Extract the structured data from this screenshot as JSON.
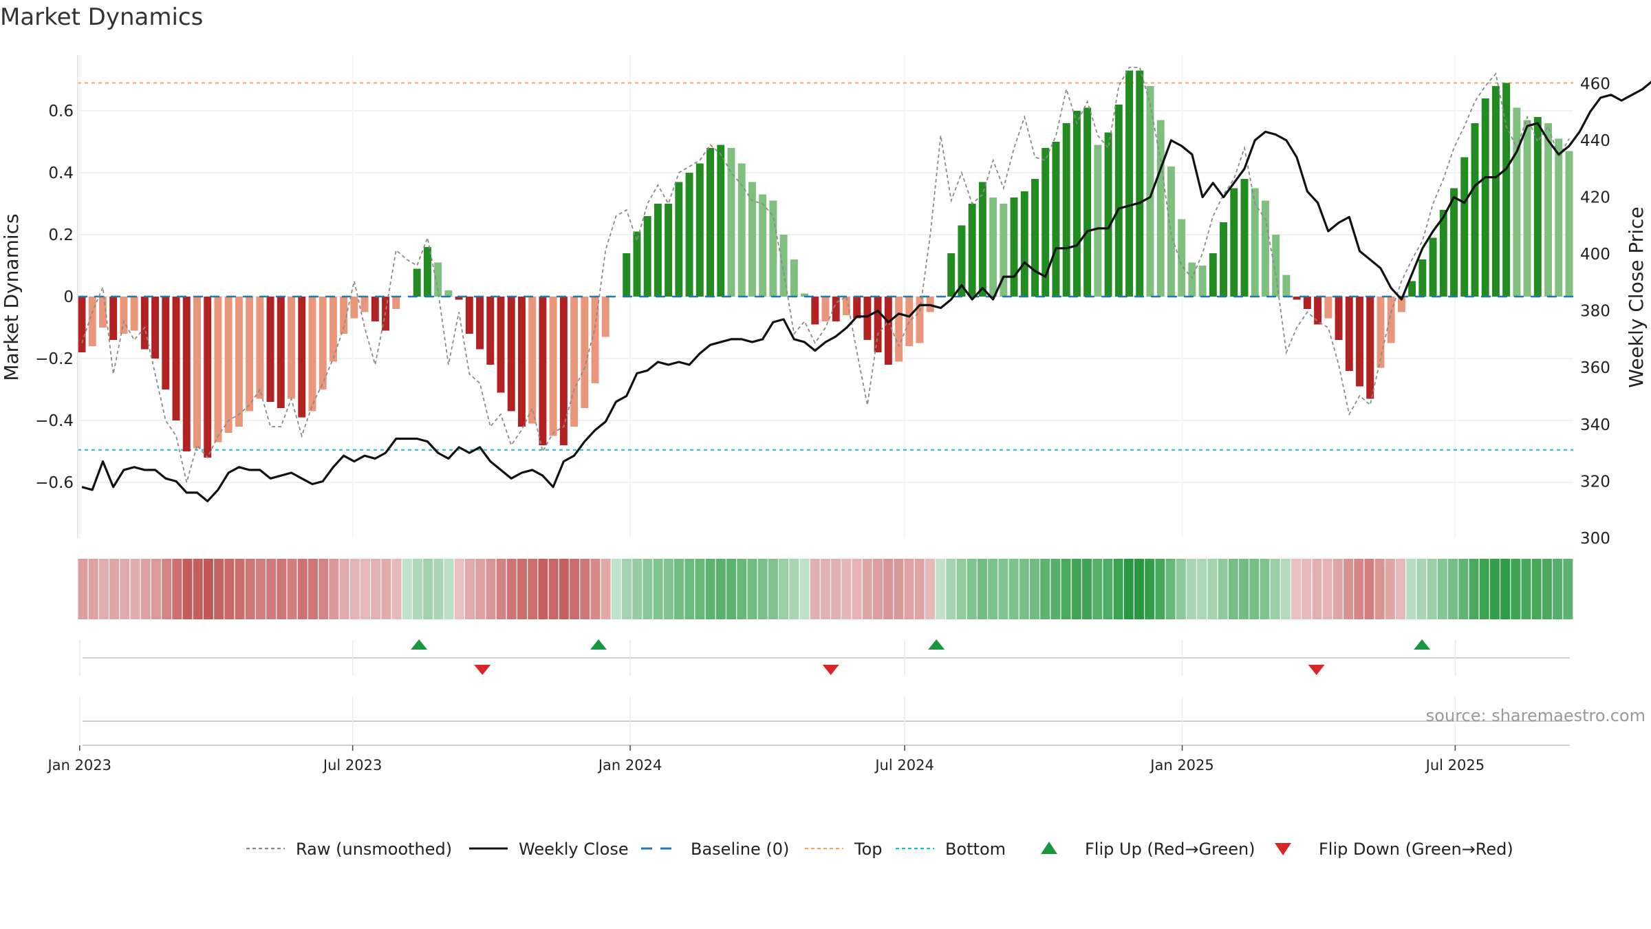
{
  "chart_data": {
    "type": "bar",
    "title": "Market Dynamics",
    "watermark": "source: sharemaestro.com",
    "left_axis": {
      "label": "Market Dynamics",
      "ylim": [
        -0.78,
        0.78
      ],
      "ticks": [
        -0.6,
        -0.4,
        -0.2,
        0,
        0.2,
        0.4,
        0.6
      ],
      "tick_labels": [
        "−0.6",
        "−0.4",
        "−0.2",
        "0",
        "0.2",
        "0.4",
        "0.6"
      ]
    },
    "right_axis": {
      "label": "Weekly Close Price",
      "ylim": [
        300,
        470
      ],
      "ticks": [
        300,
        320,
        340,
        360,
        380,
        400,
        420,
        440,
        460
      ]
    },
    "x_axis": {
      "start": "2023-01-02",
      "end": "2025-09-15",
      "ticks": [
        {
          "date": "2023-01-01",
          "label": "Jan 2023"
        },
        {
          "date": "2023-07-01",
          "label": "Jul 2023"
        },
        {
          "date": "2024-01-01",
          "label": "Jan 2024"
        },
        {
          "date": "2024-07-01",
          "label": "Jul 2024"
        },
        {
          "date": "2025-01-01",
          "label": "Jan 2025"
        },
        {
          "date": "2025-07-01",
          "label": "Jul 2025"
        }
      ]
    },
    "thresholds": {
      "top": 0.69,
      "bottom": -0.495,
      "baseline": 0
    },
    "bars": [
      -0.18,
      -0.16,
      -0.1,
      -0.14,
      -0.12,
      -0.11,
      -0.17,
      -0.2,
      -0.3,
      -0.4,
      -0.5,
      -0.49,
      -0.52,
      -0.47,
      -0.44,
      -0.42,
      -0.37,
      -0.33,
      -0.34,
      -0.36,
      -0.33,
      -0.39,
      -0.37,
      -0.3,
      -0.21,
      -0.12,
      -0.07,
      -0.05,
      -0.08,
      -0.11,
      -0.04,
      0,
      0.09,
      0.16,
      0.11,
      0.02,
      -0.01,
      -0.12,
      -0.17,
      -0.22,
      -0.31,
      -0.37,
      -0.42,
      -0.41,
      -0.48,
      -0.45,
      -0.48,
      -0.42,
      -0.36,
      -0.28,
      -0.13,
      0,
      0.14,
      0.21,
      0.26,
      0.3,
      0.3,
      0.37,
      0.4,
      0.43,
      0.48,
      0.49,
      0.48,
      0.43,
      0.37,
      0.33,
      0.31,
      0.2,
      0.12,
      0.01,
      -0.09,
      -0.08,
      -0.08,
      -0.06,
      -0.07,
      -0.14,
      -0.18,
      -0.22,
      -0.21,
      -0.16,
      -0.15,
      -0.05,
      0,
      0.14,
      0.23,
      0.3,
      0.37,
      0.32,
      0.3,
      0.32,
      0.34,
      0.38,
      0.48,
      0.5,
      0.56,
      0.6,
      0.61,
      0.49,
      0.53,
      0.62,
      0.73,
      0.73,
      0.68,
      0.57,
      0.42,
      0.25,
      0.11,
      0.1,
      0.14,
      0.24,
      0.35,
      0.38,
      0.35,
      0.31,
      0.2,
      0.07,
      -0.01,
      -0.04,
      -0.09,
      -0.07,
      -0.14,
      -0.24,
      -0.29,
      -0.33,
      -0.23,
      -0.15,
      -0.05,
      0.05,
      0.12,
      0.19,
      0.28,
      0.35,
      0.45,
      0.56,
      0.64,
      0.68,
      0.69,
      0.61,
      0.57,
      0.58,
      0.56,
      0.51,
      0.47
    ],
    "raw": [
      -0.15,
      -0.05,
      0.03,
      -0.25,
      -0.08,
      -0.14,
      -0.1,
      -0.25,
      -0.4,
      -0.45,
      -0.6,
      -0.48,
      -0.52,
      -0.45,
      -0.4,
      -0.38,
      -0.35,
      -0.3,
      -0.42,
      -0.42,
      -0.33,
      -0.45,
      -0.35,
      -0.28,
      -0.2,
      -0.1,
      0.05,
      -0.1,
      -0.22,
      -0.05,
      0.15,
      0.12,
      0.1,
      0.19,
      0.02,
      -0.22,
      -0.05,
      -0.25,
      -0.28,
      -0.42,
      -0.38,
      -0.48,
      -0.43,
      -0.36,
      -0.5,
      -0.44,
      -0.42,
      -0.3,
      -0.23,
      -0.1,
      0.15,
      0.26,
      0.28,
      0.18,
      0.3,
      0.36,
      0.3,
      0.4,
      0.42,
      0.44,
      0.49,
      0.46,
      0.4,
      0.36,
      0.31,
      0.3,
      0.26,
      0.08,
      -0.12,
      -0.08,
      -0.15,
      -0.1,
      -0.02,
      0.0,
      -0.18,
      -0.35,
      -0.12,
      -0.08,
      -0.16,
      -0.08,
      -0.05,
      0.2,
      0.52,
      0.31,
      0.4,
      0.3,
      0.33,
      0.44,
      0.35,
      0.48,
      0.58,
      0.45,
      0.44,
      0.52,
      0.67,
      0.56,
      0.63,
      0.52,
      0.48,
      0.68,
      0.74,
      0.74,
      0.62,
      0.44,
      0.2,
      0.1,
      0.06,
      0.14,
      0.26,
      0.33,
      0.38,
      0.48,
      0.3,
      0.25,
      0.07,
      -0.18,
      -0.1,
      -0.05,
      -0.08,
      -0.1,
      -0.22,
      -0.38,
      -0.32,
      -0.35,
      -0.2,
      -0.05,
      0.05,
      0.12,
      0.18,
      0.3,
      0.38,
      0.48,
      0.55,
      0.63,
      0.68,
      0.72,
      0.55,
      0.48,
      0.58,
      0.5,
      0.55,
      0.45,
      0.51
    ],
    "weekly_close": [
      318,
      317,
      327,
      318,
      324,
      325,
      324,
      324,
      321,
      320,
      316,
      316,
      313,
      317,
      323,
      325,
      324,
      324,
      321,
      322,
      323,
      321,
      319,
      320,
      325,
      329,
      327,
      329,
      328,
      330,
      335,
      335,
      335,
      334,
      330,
      328,
      332,
      330,
      332,
      327,
      324,
      321,
      323,
      324,
      322,
      318,
      327,
      329,
      334,
      338,
      341,
      348,
      350,
      358,
      359,
      362,
      361,
      362,
      361,
      365,
      368,
      369,
      370,
      370,
      369,
      370,
      376,
      377,
      370,
      369,
      366,
      369,
      371,
      374,
      378,
      378,
      380,
      376,
      379,
      378,
      382,
      382,
      381,
      384,
      389,
      384,
      388,
      384,
      392,
      392,
      397,
      394,
      392,
      402,
      402,
      403,
      408,
      409,
      409,
      416,
      417,
      418,
      420,
      430,
      440,
      438,
      435,
      420,
      425,
      420,
      425,
      430,
      440,
      443,
      442,
      440,
      434,
      422,
      418,
      408,
      411,
      413,
      401,
      398,
      395,
      388,
      384,
      393,
      402,
      408,
      413,
      420,
      418,
      424,
      427,
      427,
      430,
      436,
      445,
      446,
      440,
      435,
      438,
      443,
      450,
      455,
      456,
      454,
      456,
      458,
      461
    ],
    "bottom_band_intensity_note": "band colors mirror bar values",
    "flips": [
      {
        "type": "up",
        "date": "2023-08-14"
      },
      {
        "type": "down",
        "date": "2023-09-25"
      },
      {
        "type": "up",
        "date": "2023-12-11"
      },
      {
        "type": "down",
        "date": "2024-05-13"
      },
      {
        "type": "up",
        "date": "2024-07-22"
      },
      {
        "type": "down",
        "date": "2025-03-31"
      },
      {
        "type": "up",
        "date": "2025-06-09"
      }
    ],
    "legend": [
      {
        "key": "raw",
        "label": "Raw (unsmoothed)",
        "style": "dotted",
        "color": "#888888"
      },
      {
        "key": "close",
        "label": "Weekly Close",
        "style": "solid",
        "color": "#111111"
      },
      {
        "key": "baseline",
        "label": "Baseline (0)",
        "style": "dashed",
        "color": "#1f77b4"
      },
      {
        "key": "top",
        "label": "Top",
        "style": "dotted",
        "color": "#f4a460"
      },
      {
        "key": "bottom",
        "label": "Bottom",
        "style": "dotted",
        "color": "#17becf"
      },
      {
        "key": "flip-up",
        "label": "Flip Up (Red→Green)",
        "style": "triangle-up",
        "color": "#1a9641"
      },
      {
        "key": "flip-down",
        "label": "Flip Down (Green→Red)",
        "style": "triangle-down",
        "color": "#d62728"
      }
    ],
    "colors": {
      "bar_pos_strong": "#228b22",
      "bar_pos_weak": "#7fbf7f",
      "bar_neg_strong": "#b22222",
      "bar_neg_weak": "#e9967a"
    }
  }
}
